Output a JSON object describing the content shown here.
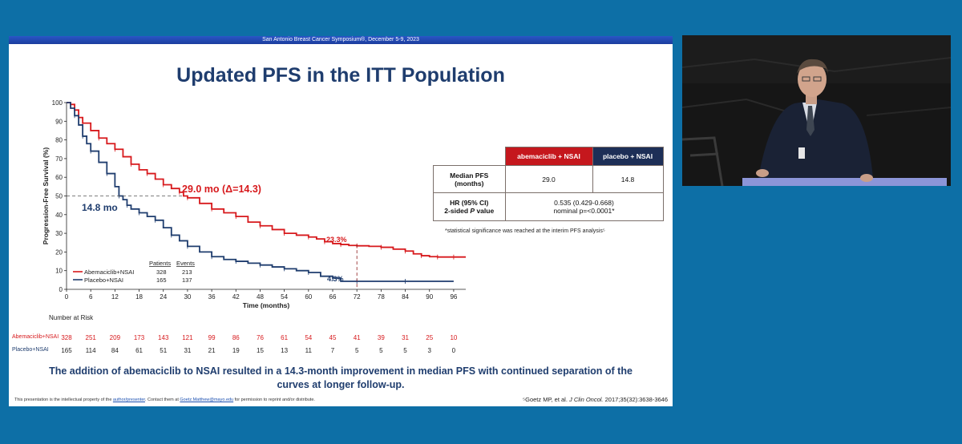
{
  "slide": {
    "header": "San Antonio Breast Cancer Symposium®, December 5-9, 2023",
    "title": "Updated PFS in the ITT Population",
    "conclusion_line1": "The addition of abemaciclib to NSAI resulted in a 14.3-month improvement in median PFS with continued separation of the",
    "conclusion_line2": "curves at longer follow-up.",
    "footer": {
      "left_prefix": "This presentation is the intellectual property of the ",
      "left_link1": "author/presenter",
      "left_mid": ". Contact them at ",
      "left_link2": "Goetz.Matthew@mayo.edu",
      "left_suffix": " for permission to reprint and/or distribute.",
      "citation_prefix": "⁵Goetz MP, et al. ",
      "citation_journal": "J Clin Oncol.",
      "citation_suffix": " 2017;35(32):3638-3646"
    }
  },
  "chart_data": {
    "type": "line",
    "title": "",
    "xlabel": "Time (months)",
    "ylabel": "Progression-Free Survival (%)",
    "xlim": [
      0,
      99
    ],
    "ylim": [
      0,
      100
    ],
    "xticks": [
      0,
      6,
      12,
      18,
      24,
      30,
      36,
      42,
      48,
      54,
      60,
      66,
      72,
      78,
      84,
      90,
      96
    ],
    "yticks": [
      0,
      10,
      20,
      30,
      40,
      50,
      60,
      70,
      80,
      90,
      100
    ],
    "grid": false,
    "series": [
      {
        "name": "Abemaciclib+NSAI",
        "color": "#d7191c",
        "x": [
          0,
          1,
          2,
          3,
          4,
          6,
          8,
          10,
          12,
          14,
          16,
          18,
          20,
          22,
          24,
          26,
          28,
          29,
          30,
          33,
          36,
          39,
          42,
          45,
          48,
          51,
          54,
          57,
          60,
          62,
          64,
          66,
          68,
          70,
          72,
          75,
          78,
          81,
          84,
          86,
          88,
          90,
          92,
          94,
          96,
          100
        ],
        "y": [
          100,
          99,
          96,
          92,
          89,
          85,
          81,
          78,
          75,
          71,
          67,
          64,
          62,
          59,
          56,
          54,
          52,
          50,
          49,
          46,
          43,
          41,
          39,
          36,
          34,
          32,
          30,
          29,
          28,
          27,
          25.5,
          24.5,
          24,
          23.5,
          23.3,
          23,
          22.5,
          21.5,
          20.5,
          19,
          18,
          17.5,
          17.3,
          17.3,
          17.3,
          17.3
        ]
      },
      {
        "name": "Placebo+NSAI",
        "color": "#1f3d6e",
        "x": [
          0,
          1,
          2,
          3,
          4,
          5,
          6,
          8,
          10,
          12,
          13,
          14,
          15,
          16,
          18,
          20,
          22,
          24,
          26,
          28,
          30,
          33,
          36,
          39,
          42,
          45,
          48,
          51,
          54,
          57,
          60,
          63,
          66,
          68,
          72,
          78,
          84,
          90,
          96
        ],
        "y": [
          100,
          97,
          93,
          88,
          82,
          78,
          74,
          68,
          62,
          55,
          50,
          48,
          45,
          43,
          41,
          39,
          37,
          33,
          29,
          26,
          23,
          20,
          17.5,
          16,
          15,
          14,
          13,
          12,
          11,
          10,
          9,
          7,
          6,
          4.3,
          4.3,
          4.3,
          4.3,
          4.3,
          4.3
        ]
      }
    ],
    "annotations": {
      "abema_median": "29.0 mo (Δ=14.3)",
      "placebo_median": "14.8 mo",
      "abema_72": "23.3%",
      "placebo_72": "4.3%",
      "median_guideline_y": 50,
      "abema_median_x": 29.0,
      "placebo_median_x": 14.8,
      "landmark_x": 72
    },
    "legend": {
      "col_patients": "Patients",
      "col_events": "Events",
      "rows": [
        {
          "label": "Abemaciclib+NSAI",
          "patients": "328",
          "events": "213"
        },
        {
          "label": "Placebo+NSAI",
          "patients": "165",
          "events": "137"
        }
      ]
    },
    "risk_table": {
      "heading": "Number at Risk",
      "rows": [
        {
          "label": "Abemaciclib+NSAI",
          "color": "#d7191c",
          "values": [
            "328",
            "251",
            "209",
            "173",
            "143",
            "121",
            "99",
            "86",
            "76",
            "61",
            "54",
            "45",
            "41",
            "39",
            "31",
            "25",
            "10"
          ]
        },
        {
          "label": "Placebo+NSAI",
          "color": "#1f3d6e",
          "values": [
            "165",
            "114",
            "84",
            "61",
            "51",
            "31",
            "21",
            "19",
            "15",
            "13",
            "11",
            "7",
            "5",
            "5",
            "5",
            "3",
            "0"
          ]
        }
      ]
    }
  },
  "stats_table": {
    "col_abema": "abemaciclib + NSAI",
    "col_placebo": "placebo + NSAI",
    "row1_label_1": "Median PFS",
    "row1_label_2": "(months)",
    "row1_abema": "29.0",
    "row1_placebo": "14.8",
    "row2_label_1": "HR (95% CI)",
    "row2_label_2_prefix": "2-sided ",
    "row2_label_2_italic": "P",
    "row2_label_2_suffix": " value",
    "row2_value_1": "0.535 (0.429-0.668)",
    "row2_value_2": "nominal p=<0.0001*",
    "note": "*statistical significance was reached at the interim PFS analysis⁵"
  }
}
